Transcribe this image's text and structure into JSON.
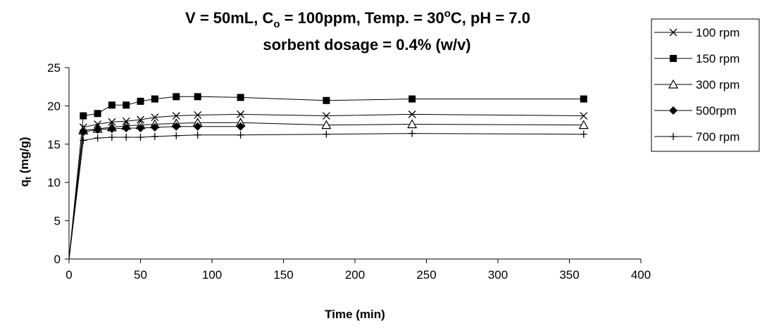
{
  "chart_data": {
    "type": "line",
    "title_line1_prefix": "V = 50mL, C",
    "title_line1_sub": "o",
    "title_line1_mid": " = 100ppm, Temp. = 30",
    "title_line1_sup": "o",
    "title_line1_suffix": "C, pH = 7.0",
    "title_line2": "sorbent dosage = 0.4% (w/v)",
    "xlabel": "Time (min)",
    "ylabel_main": "q",
    "ylabel_sub": "t",
    "ylabel_unit": " (mg/g)",
    "xlim": [
      0,
      400
    ],
    "ylim": [
      0,
      25
    ],
    "xticks": [
      "0",
      "50",
      "100",
      "150",
      "200",
      "250",
      "300",
      "350",
      "400"
    ],
    "yticks": [
      "0",
      "5",
      "10",
      "15",
      "20",
      "25"
    ],
    "grid": false,
    "legend_position": "right",
    "series": [
      {
        "name": "100 rpm",
        "marker": "x",
        "x": [
          0,
          10,
          20,
          30,
          40,
          50,
          60,
          75,
          90,
          120,
          180,
          240,
          360
        ],
        "y": [
          0,
          17.2,
          17.6,
          17.9,
          18.0,
          18.2,
          18.5,
          18.7,
          18.8,
          18.9,
          18.7,
          18.9,
          18.7
        ]
      },
      {
        "name": "150 rpm",
        "marker": "square",
        "x": [
          0,
          10,
          20,
          30,
          40,
          50,
          60,
          75,
          90,
          120,
          180,
          240,
          360
        ],
        "y": [
          0,
          18.7,
          19.0,
          20.1,
          20.1,
          20.6,
          20.9,
          21.2,
          21.2,
          21.1,
          20.7,
          20.9,
          20.9
        ]
      },
      {
        "name": "300 rpm",
        "marker": "triangle",
        "x": [
          0,
          10,
          20,
          30,
          40,
          50,
          60,
          75,
          90,
          120,
          180,
          240,
          360
        ],
        "y": [
          0,
          16.8,
          17.0,
          17.2,
          17.4,
          17.5,
          17.6,
          17.7,
          17.8,
          17.8,
          17.5,
          17.6,
          17.5
        ]
      },
      {
        "name": "500rpm",
        "marker": "diamond",
        "x": [
          0,
          10,
          20,
          30,
          40,
          50,
          60,
          75,
          90,
          120
        ],
        "y": [
          0,
          16.6,
          16.9,
          17.0,
          17.1,
          17.1,
          17.2,
          17.3,
          17.3,
          17.3
        ]
      },
      {
        "name": "700 rpm",
        "marker": "plus",
        "x": [
          0,
          10,
          20,
          30,
          40,
          50,
          60,
          75,
          90,
          120,
          180,
          240,
          360
        ],
        "y": [
          0,
          15.5,
          15.8,
          15.9,
          15.9,
          15.9,
          16.0,
          16.1,
          16.2,
          16.2,
          16.3,
          16.4,
          16.3
        ]
      }
    ]
  }
}
